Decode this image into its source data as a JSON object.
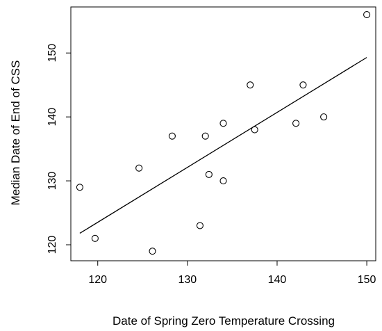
{
  "chart_data": {
    "type": "scatter",
    "xlabel": "Date of Spring Zero Temperature Crossing",
    "ylabel": "Median Date of End of CSS",
    "xlim": [
      117,
      151
    ],
    "ylim": [
      117.5,
      157.2
    ],
    "xticks": [
      120,
      130,
      140,
      150
    ],
    "yticks": [
      120,
      130,
      140,
      150
    ],
    "points": [
      {
        "x": 118.0,
        "y": 129
      },
      {
        "x": 119.7,
        "y": 121
      },
      {
        "x": 124.6,
        "y": 132
      },
      {
        "x": 126.1,
        "y": 119
      },
      {
        "x": 128.3,
        "y": 137
      },
      {
        "x": 131.4,
        "y": 123
      },
      {
        "x": 132.0,
        "y": 137
      },
      {
        "x": 132.4,
        "y": 131
      },
      {
        "x": 134.0,
        "y": 139
      },
      {
        "x": 134.0,
        "y": 130
      },
      {
        "x": 137.0,
        "y": 145
      },
      {
        "x": 137.5,
        "y": 138
      },
      {
        "x": 142.1,
        "y": 139
      },
      {
        "x": 142.9,
        "y": 145
      },
      {
        "x": 145.2,
        "y": 140
      },
      {
        "x": 150.0,
        "y": 156
      }
    ],
    "fit_line": {
      "x": [
        118.0,
        150.0
      ],
      "y": [
        121.8,
        149.3
      ]
    },
    "grid": false,
    "marker": "open-circle",
    "colors": {
      "ink": "#000000",
      "background": "#ffffff"
    }
  }
}
